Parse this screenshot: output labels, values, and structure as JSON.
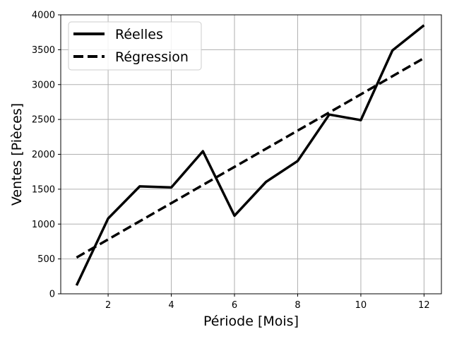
{
  "chart_data": {
    "type": "line",
    "xlabel": "Période [Mois]",
    "ylabel": "Ventes [Pièces]",
    "xlim": [
      0.5,
      12.55
    ],
    "ylim": [
      0,
      4000
    ],
    "x_ticks": [
      2,
      4,
      6,
      8,
      10,
      12
    ],
    "y_ticks": [
      0,
      500,
      1000,
      1500,
      2000,
      2500,
      3000,
      3500,
      4000
    ],
    "grid": true,
    "legend_position": "top-left",
    "series": [
      {
        "name": "Réelles",
        "style": "solid",
        "color": "#000000",
        "x": [
          1,
          2,
          3,
          4,
          5,
          6,
          7,
          8,
          9,
          10,
          11,
          12
        ],
        "y": [
          120,
          1080,
          1540,
          1525,
          2045,
          1120,
          1605,
          1905,
          2570,
          2490,
          3490,
          3850
        ]
      },
      {
        "name": "Régression",
        "style": "dashed",
        "color": "#000000",
        "x": [
          1,
          2,
          3,
          4,
          5,
          6,
          7,
          8,
          9,
          10,
          11,
          12
        ],
        "y": [
          520,
          780,
          1040,
          1300,
          1560,
          1820,
          2080,
          2340,
          2600,
          2860,
          3120,
          3380
        ]
      }
    ]
  }
}
